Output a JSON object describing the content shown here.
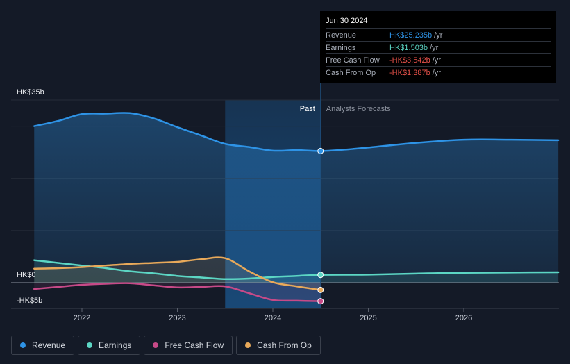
{
  "chart_data": {
    "type": "area",
    "y_label_top": "HK$35b",
    "y_label_zero": "HK$0",
    "y_label_bottom": "-HK$5b",
    "ylim": [
      -5,
      35
    ],
    "x_ticks": [
      "2022",
      "2023",
      "2024",
      "2025",
      "2026"
    ],
    "x_tick_values": [
      2022,
      2023,
      2024,
      2025,
      2026
    ],
    "xlim": [
      2021.25,
      2026.99
    ],
    "divider_x": 2024.5,
    "highlight_start_x": 2023.5,
    "past_label": "Past",
    "forecast_label": "Analysts Forecasts",
    "series": [
      {
        "name": "Revenue",
        "color": "#2e93e6",
        "points": [
          [
            2021.5,
            30.0
          ],
          [
            2021.75,
            31.0
          ],
          [
            2022.0,
            32.3
          ],
          [
            2022.25,
            32.4
          ],
          [
            2022.5,
            32.5
          ],
          [
            2022.75,
            31.5
          ],
          [
            2023.0,
            29.8
          ],
          [
            2023.25,
            28.2
          ],
          [
            2023.5,
            26.6
          ],
          [
            2023.75,
            26.0
          ],
          [
            2024.0,
            25.3
          ],
          [
            2024.25,
            25.4
          ],
          [
            2024.5,
            25.235
          ],
          [
            2024.75,
            25.5
          ],
          [
            2025.0,
            25.9
          ],
          [
            2025.5,
            26.8
          ],
          [
            2026.0,
            27.4
          ],
          [
            2026.5,
            27.4
          ],
          [
            2026.99,
            27.3
          ]
        ]
      },
      {
        "name": "Earnings",
        "color": "#5cd6c4",
        "points": [
          [
            2021.5,
            4.3
          ],
          [
            2021.75,
            3.8
          ],
          [
            2022.0,
            3.3
          ],
          [
            2022.25,
            2.8
          ],
          [
            2022.5,
            2.2
          ],
          [
            2022.75,
            1.8
          ],
          [
            2023.0,
            1.3
          ],
          [
            2023.25,
            1.0
          ],
          [
            2023.5,
            0.7
          ],
          [
            2023.75,
            0.8
          ],
          [
            2024.0,
            1.1
          ],
          [
            2024.25,
            1.3
          ],
          [
            2024.5,
            1.503
          ],
          [
            2025.0,
            1.55
          ],
          [
            2025.5,
            1.75
          ],
          [
            2026.0,
            1.9
          ],
          [
            2026.99,
            2.0
          ]
        ]
      },
      {
        "name": "Free Cash Flow",
        "color": "#c74a88",
        "points": [
          [
            2021.5,
            -1.2
          ],
          [
            2021.75,
            -0.8
          ],
          [
            2022.0,
            -0.4
          ],
          [
            2022.25,
            -0.2
          ],
          [
            2022.5,
            -0.1
          ],
          [
            2022.75,
            -0.5
          ],
          [
            2023.0,
            -0.9
          ],
          [
            2023.25,
            -0.8
          ],
          [
            2023.5,
            -0.7
          ],
          [
            2023.75,
            -2.0
          ],
          [
            2024.0,
            -3.3
          ],
          [
            2024.25,
            -3.45
          ],
          [
            2024.5,
            -3.542
          ]
        ]
      },
      {
        "name": "Cash From Op",
        "color": "#e8a95a",
        "points": [
          [
            2021.5,
            2.7
          ],
          [
            2021.75,
            2.8
          ],
          [
            2022.0,
            3.0
          ],
          [
            2022.25,
            3.3
          ],
          [
            2022.5,
            3.6
          ],
          [
            2022.75,
            3.8
          ],
          [
            2023.0,
            4.0
          ],
          [
            2023.25,
            4.5
          ],
          [
            2023.5,
            4.7
          ],
          [
            2023.75,
            2.2
          ],
          [
            2024.0,
            0.1
          ],
          [
            2024.25,
            -0.7
          ],
          [
            2024.5,
            -1.387
          ]
        ]
      }
    ]
  },
  "tooltip": {
    "date": "Jun 30 2024",
    "rows": [
      {
        "label": "Revenue",
        "value": "HK$25.235b",
        "unit": "/yr",
        "color": "#2e93e6"
      },
      {
        "label": "Earnings",
        "value": "HK$1.503b",
        "unit": "/yr",
        "color": "#5cd6c4"
      },
      {
        "label": "Free Cash Flow",
        "value": "-HK$3.542b",
        "unit": "/yr",
        "color": "#e8524a"
      },
      {
        "label": "Cash From Op",
        "value": "-HK$1.387b",
        "unit": "/yr",
        "color": "#e8524a"
      }
    ]
  },
  "legend": [
    {
      "label": "Revenue",
      "color": "#2e93e6"
    },
    {
      "label": "Earnings",
      "color": "#5cd6c4"
    },
    {
      "label": "Free Cash Flow",
      "color": "#c74a88"
    },
    {
      "label": "Cash From Op",
      "color": "#e8a95a"
    }
  ]
}
